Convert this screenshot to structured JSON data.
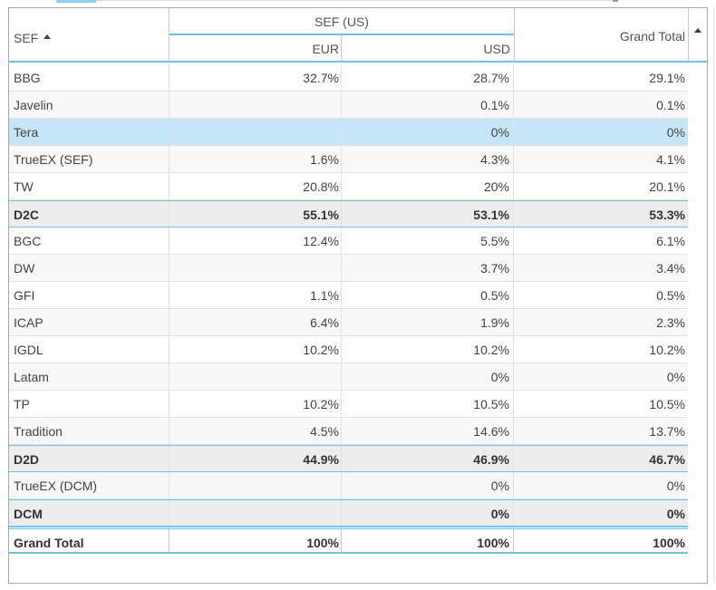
{
  "header": {
    "sef_label": "SEF",
    "group_label": "SEF (US)",
    "eur_label": "EUR",
    "usd_label": "USD",
    "grand_total_label": "Grand Total"
  },
  "rows": [
    {
      "type": "data",
      "name": "BBG",
      "eur": "32.7%",
      "usd": "28.7%",
      "total": "29.1%"
    },
    {
      "type": "data",
      "name": "Javelin",
      "eur": "",
      "usd": "0.1%",
      "total": "0.1%"
    },
    {
      "type": "selected",
      "name": "Tera",
      "eur": "",
      "usd": "0%",
      "total": "0%"
    },
    {
      "type": "data",
      "name": "TrueEX (SEF)",
      "eur": "1.6%",
      "usd": "4.3%",
      "total": "4.1%"
    },
    {
      "type": "data",
      "name": "TW",
      "eur": "20.8%",
      "usd": "20%",
      "total": "20.1%"
    },
    {
      "type": "subtotal",
      "name": "D2C",
      "eur": "55.1%",
      "usd": "53.1%",
      "total": "53.3%"
    },
    {
      "type": "data",
      "name": "BGC",
      "eur": "12.4%",
      "usd": "5.5%",
      "total": "6.1%"
    },
    {
      "type": "data",
      "name": "DW",
      "eur": "",
      "usd": "3.7%",
      "total": "3.4%"
    },
    {
      "type": "data",
      "name": "GFI",
      "eur": "1.1%",
      "usd": "0.5%",
      "total": "0.5%"
    },
    {
      "type": "data",
      "name": "ICAP",
      "eur": "6.4%",
      "usd": "1.9%",
      "total": "2.3%"
    },
    {
      "type": "data",
      "name": "IGDL",
      "eur": "10.2%",
      "usd": "10.2%",
      "total": "10.2%"
    },
    {
      "type": "data",
      "name": "Latam",
      "eur": "",
      "usd": "0%",
      "total": "0%"
    },
    {
      "type": "data",
      "name": "TP",
      "eur": "10.2%",
      "usd": "10.5%",
      "total": "10.5%"
    },
    {
      "type": "data",
      "name": "Tradition",
      "eur": "4.5%",
      "usd": "14.6%",
      "total": "13.7%"
    },
    {
      "type": "subtotal",
      "name": "D2D",
      "eur": "44.9%",
      "usd": "46.9%",
      "total": "46.7%"
    },
    {
      "type": "data",
      "name": "TrueEX (DCM)",
      "eur": "",
      "usd": "0%",
      "total": "0%"
    },
    {
      "type": "subtotal",
      "name": "DCM",
      "eur": "",
      "usd": "0%",
      "total": "0%"
    },
    {
      "type": "total",
      "name": "Grand Total",
      "eur": "100%",
      "usd": "100%",
      "total": "100%"
    }
  ],
  "icons": {
    "sort": "sort-ascending-icon",
    "scroll": "scroll-up-icon"
  },
  "colors": {
    "accent": "#6cc4ea",
    "selected_row": "#c4e6f6",
    "subtotal_row": "#ededed"
  }
}
